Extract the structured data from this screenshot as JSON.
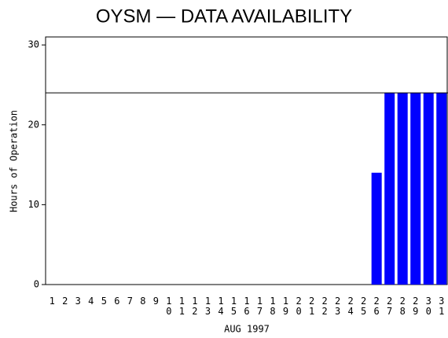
{
  "chart_data": {
    "type": "bar",
    "title": "OYSM — DATA AVAILABILITY",
    "x_label": "AUG 1997",
    "y_label": "Hours of Operation",
    "categories": [
      "1",
      "2",
      "3",
      "4",
      "5",
      "6",
      "7",
      "8",
      "9",
      "10",
      "11",
      "12",
      "13",
      "14",
      "15",
      "16",
      "17",
      "18",
      "19",
      "20",
      "21",
      "22",
      "23",
      "24",
      "25",
      "26",
      "27",
      "28",
      "29",
      "30",
      "31"
    ],
    "values": [
      0,
      0,
      0,
      0,
      0,
      0,
      0,
      0,
      0,
      0,
      0,
      0,
      0,
      0,
      0,
      0,
      0,
      0,
      0,
      0,
      0,
      0,
      0,
      0,
      0,
      14,
      24,
      24,
      24,
      24,
      24
    ],
    "color": "#0000ff",
    "ylim": [
      0,
      31
    ],
    "yticks": [
      0,
      10,
      20,
      30
    ],
    "reference_line": 24
  }
}
